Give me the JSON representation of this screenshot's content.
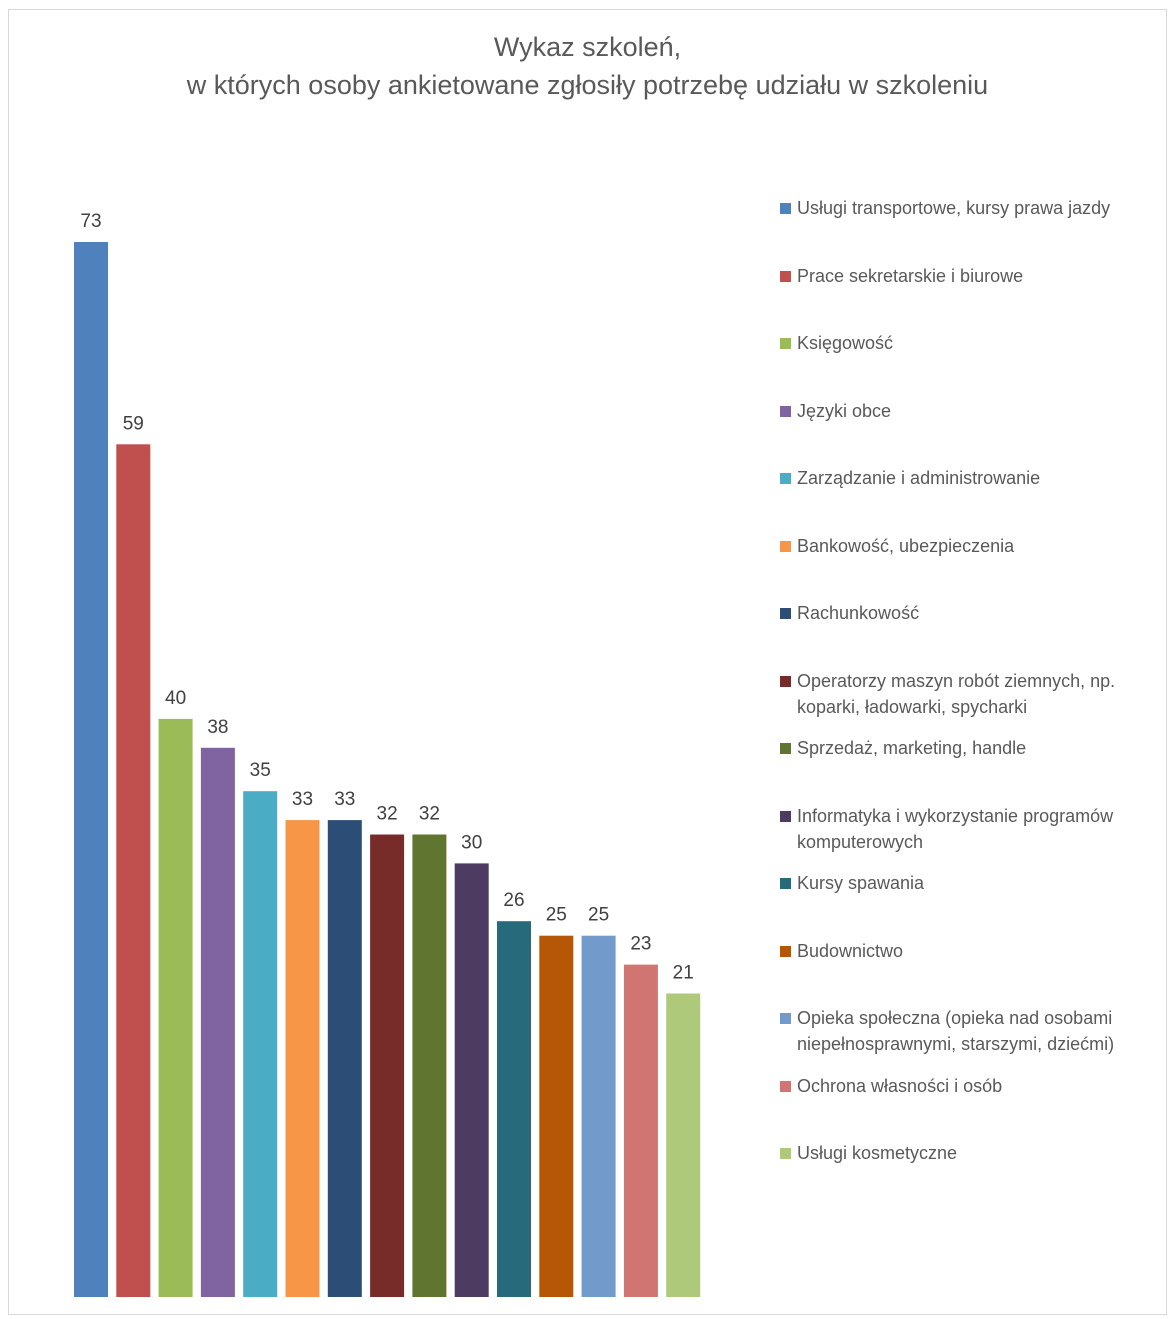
{
  "chart_data": {
    "type": "bar",
    "title": "Wykaz szkoleń,",
    "subtitle": "w których osoby ankietowane zgłosiły potrzebę udziału w szkoleniu",
    "xlabel": "",
    "ylabel": "",
    "ylim": [
      0,
      73
    ],
    "grid": false,
    "legend_position": "right",
    "data_labels": true,
    "categories": [
      "Usługi transportowe, kursy prawa jazdy",
      "Prace sekretarskie i biurowe",
      "Księgowość",
      "Języki obce",
      "Zarządzanie i administrowanie",
      "Bankowość, ubezpieczenia",
      "Rachunkowość",
      "Operatorzy maszyn robót ziemnych, np. koparki, ładowarki, spycharki",
      "Sprzedaż, marketing, handle",
      "Informatyka i wykorzystanie programów komputerowych",
      "Kursy spawania",
      "Budownictwo",
      "Opieka społeczna (opieka nad osobami niepełnosprawnymi, starszymi, dziećmi)",
      "Ochrona własności i osób",
      "Usługi kosmetyczne"
    ],
    "values": [
      73,
      59,
      40,
      38,
      35,
      33,
      33,
      32,
      32,
      30,
      26,
      25,
      25,
      23,
      21
    ],
    "colors": [
      "#4f81bd",
      "#c0504d",
      "#9bbb59",
      "#8064a2",
      "#4bacc6",
      "#f79646",
      "#2c4d75",
      "#772c2a",
      "#5f7530",
      "#4d3b62",
      "#276a7c",
      "#b65708",
      "#729aca",
      "#d07572",
      "#afc97a"
    ]
  }
}
